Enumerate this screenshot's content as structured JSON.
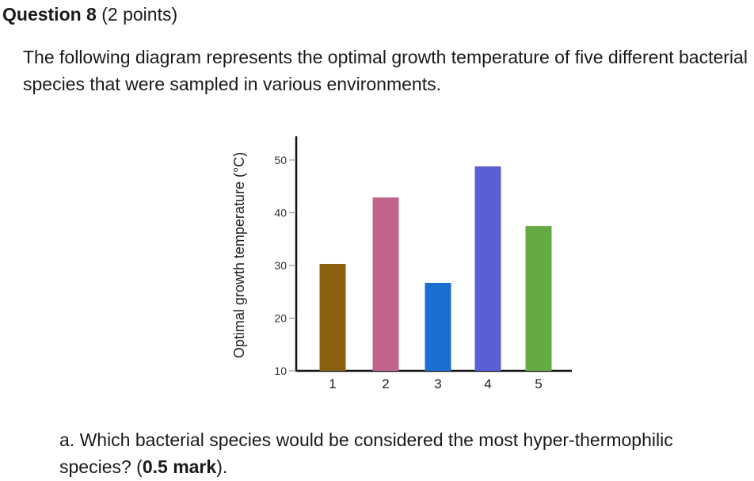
{
  "question": {
    "title_bold": "Question 8",
    "title_points": "(2 points)"
  },
  "intro_text": "The following diagram represents the optimal growth temperature of five different bacterial species that were sampled in various environments.",
  "part_a": {
    "prefix": "a. Which bacterial species would be considered the most hyper-thermophilic species? (",
    "mark": "0.5 mark",
    "suffix": ")."
  },
  "chart_data": {
    "type": "bar",
    "title": "",
    "xlabel": "",
    "ylabel": "Optimal growth temperature (°C)",
    "categories": [
      "1",
      "2",
      "3",
      "4",
      "5"
    ],
    "values": [
      30.3,
      42.9,
      26.7,
      48.8,
      37.5
    ],
    "colors": [
      "#8a6010",
      "#c0648c",
      "#1a6fd0",
      "#5a5ed4",
      "#66aa44"
    ],
    "ylim": [
      10,
      50
    ],
    "yticks": [
      10,
      20,
      30,
      40,
      50
    ],
    "grid": false
  }
}
